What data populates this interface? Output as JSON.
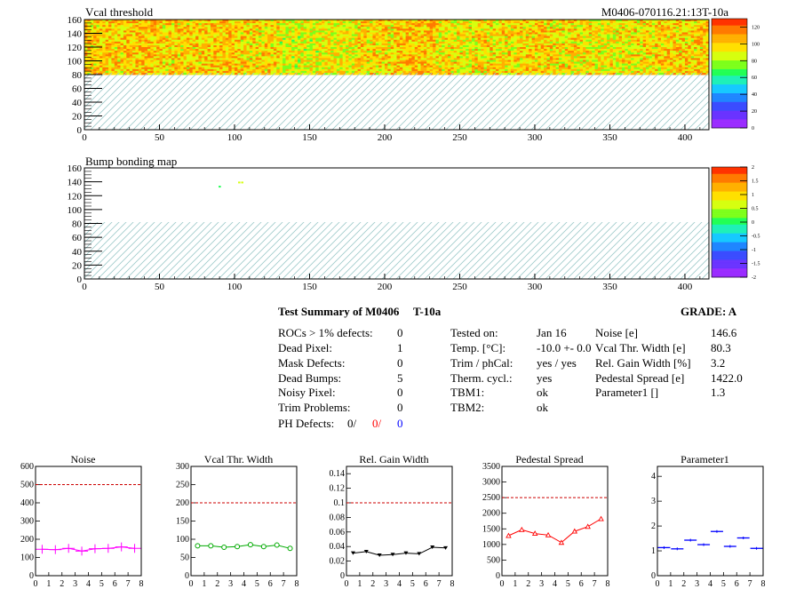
{
  "header": {
    "left_title": "Vcal threshold",
    "right_title": "M0406-070116.21:13T-10a"
  },
  "bump_title": "Bump bonding map",
  "summary": {
    "title": "Test Summary of M0406",
    "temp_tag": "T-10a",
    "grade": "GRADE:  A",
    "defects": [
      {
        "label": "ROCs > 1% defects:",
        "value": "0"
      },
      {
        "label": "Dead Pixel:",
        "value": "1"
      },
      {
        "label": "Mask Defects:",
        "value": "0"
      },
      {
        "label": "Dead Bumps:",
        "value": "5"
      },
      {
        "label": "Noisy Pixel:",
        "value": "0"
      },
      {
        "label": "Trim Problems:",
        "value": "0"
      }
    ],
    "ph_defects": {
      "label": "PH Defects:",
      "a": "0/",
      "b": "0/",
      "c": "0"
    },
    "tests": [
      {
        "label": "Tested on:",
        "value": "Jan 16"
      },
      {
        "label": "Temp. [°C]:",
        "value": "-10.0 +- 0.0"
      },
      {
        "label": "Trim / phCal:",
        "value": "yes / yes"
      },
      {
        "label": "Therm. cycl.:",
        "value": "yes"
      },
      {
        "label": "TBM1:",
        "value": "ok"
      },
      {
        "label": "TBM2:",
        "value": "ok"
      }
    ],
    "params": [
      {
        "label": "Noise [e]",
        "value": "146.6"
      },
      {
        "label": "Vcal Thr. Width [e]",
        "value": "80.3"
      },
      {
        "label": "Rel. Gain Width [%]",
        "value": "3.2"
      },
      {
        "label": "Pedestal Spread [e]",
        "value": "1422.0"
      },
      {
        "label": "Parameter1 []",
        "value": "1.3"
      }
    ]
  },
  "colors": {
    "palette": [
      "#9a2bff",
      "#6a33ff",
      "#3b4cff",
      "#1f86ff",
      "#16c9ff",
      "#1ff0b8",
      "#22ff55",
      "#7dff1a",
      "#d6ff0f",
      "#ffe000",
      "#ffb000",
      "#ff7a00",
      "#ff3300"
    ],
    "noise": "#ff00ff",
    "vcal": "#00aa00",
    "gain": "#000000",
    "pedestal": "#ff0000",
    "param1": "#0000ff",
    "limit": "#cc0000",
    "hatch": "#9ecaca"
  },
  "chart_data": [
    {
      "type": "heatmap",
      "name": "vcal_map",
      "title": "Vcal threshold",
      "x_ticks": [
        "0",
        "50",
        "100",
        "150",
        "200",
        "250",
        "300",
        "350",
        "400"
      ],
      "y_ticks": [
        "0",
        "20",
        "40",
        "60",
        "80",
        "100",
        "120",
        "140",
        "160"
      ],
      "xlim": [
        0,
        416
      ],
      "ylim": [
        0,
        160
      ],
      "filled_y_range": [
        80,
        160
      ],
      "hatched_y_range": [
        0,
        80
      ],
      "roc_mean_levels": [
        98,
        100,
        97,
        99,
        96,
        88,
        90,
        96,
        101,
        93,
        95,
        97,
        94,
        92,
        95,
        98
      ],
      "colorbar_ticks": [
        "0",
        "20",
        "40",
        "60",
        "80",
        "100",
        "120"
      ],
      "zlim": [
        0,
        130
      ]
    },
    {
      "type": "heatmap",
      "name": "bump_map",
      "title": "Bump bonding map",
      "x_ticks": [
        "0",
        "50",
        "100",
        "150",
        "200",
        "250",
        "300",
        "350",
        "400"
      ],
      "y_ticks": [
        "0",
        "20",
        "40",
        "60",
        "80",
        "100",
        "120",
        "140",
        "160"
      ],
      "xlim": [
        0,
        416
      ],
      "ylim": [
        0,
        160
      ],
      "hatched_y_range": [
        0,
        80
      ],
      "points": [
        [
          90,
          133,
          0.0
        ],
        [
          103,
          139,
          0.7
        ],
        [
          105,
          139,
          0.6
        ]
      ],
      "colorbar_ticks": [
        "-2",
        "-1.5",
        "-1",
        "-0.5",
        "0",
        "0.5",
        "1",
        "1.5",
        "2"
      ],
      "zlim": [
        -2,
        2
      ]
    },
    {
      "type": "line",
      "title": "Noise",
      "x": [
        0.5,
        1.5,
        2.5,
        3.5,
        4.5,
        5.5,
        6.5,
        7.5
      ],
      "values": [
        145,
        143,
        150,
        135,
        148,
        150,
        158,
        150
      ],
      "xlim": [
        0,
        8
      ],
      "ylim": [
        0,
        600
      ],
      "y_ticks": [
        "0",
        "100",
        "200",
        "300",
        "400",
        "500",
        "600"
      ],
      "x_ticks": [
        "0",
        "1",
        "2",
        "3",
        "4",
        "5",
        "6",
        "7",
        "8"
      ],
      "limit": 500
    },
    {
      "type": "line",
      "title": "Vcal Thr. Width",
      "x": [
        0.5,
        1.5,
        2.5,
        3.5,
        4.5,
        5.5,
        6.5,
        7.5
      ],
      "values": [
        82,
        82,
        78,
        80,
        85,
        80,
        84,
        75
      ],
      "xlim": [
        0,
        8
      ],
      "ylim": [
        0,
        300
      ],
      "y_ticks": [
        "0",
        "50",
        "100",
        "150",
        "200",
        "250",
        "300"
      ],
      "x_ticks": [
        "0",
        "1",
        "2",
        "3",
        "4",
        "5",
        "6",
        "7",
        "8"
      ],
      "limit": 200
    },
    {
      "type": "line",
      "title": "Rel. Gain Width",
      "x": [
        0.5,
        1.5,
        2.5,
        3.5,
        4.5,
        5.5,
        6.5,
        7.5
      ],
      "values": [
        0.031,
        0.033,
        0.028,
        0.029,
        0.031,
        0.03,
        0.039,
        0.038
      ],
      "xlim": [
        0,
        8
      ],
      "ylim": [
        0,
        0.15
      ],
      "y_ticks": [
        "0",
        "0.02",
        "0.04",
        "0.06",
        "0.08",
        "0.1",
        "0.12",
        "0.14"
      ],
      "x_ticks": [
        "0",
        "1",
        "2",
        "3",
        "4",
        "5",
        "6",
        "7",
        "8"
      ],
      "limit": 0.1
    },
    {
      "type": "line",
      "title": "Pedestal Spread",
      "x": [
        0.5,
        1.5,
        2.5,
        3.5,
        4.5,
        5.5,
        6.5,
        7.5
      ],
      "values": [
        1280,
        1470,
        1350,
        1300,
        1060,
        1420,
        1570,
        1820
      ],
      "xlim": [
        0,
        8
      ],
      "ylim": [
        0,
        3500
      ],
      "y_ticks": [
        "0",
        "500",
        "1000",
        "1500",
        "2000",
        "2500",
        "3000",
        "3500"
      ],
      "x_ticks": [
        "0",
        "1",
        "2",
        "3",
        "4",
        "5",
        "6",
        "7",
        "8"
      ],
      "limit": 2500
    },
    {
      "type": "scatter",
      "title": "Parameter1",
      "x": [
        0.5,
        1.5,
        2.5,
        3.5,
        4.5,
        5.5,
        6.5,
        7.5
      ],
      "values": [
        1.13,
        1.08,
        1.43,
        1.25,
        1.78,
        1.18,
        1.52,
        1.1
      ],
      "xlim": [
        0,
        8
      ],
      "ylim": [
        0,
        4.4
      ],
      "y_ticks": [
        "0",
        "1",
        "2",
        "3",
        "4"
      ],
      "x_ticks": [
        "0",
        "1",
        "2",
        "3",
        "4",
        "5",
        "6",
        "7",
        "8"
      ]
    }
  ]
}
